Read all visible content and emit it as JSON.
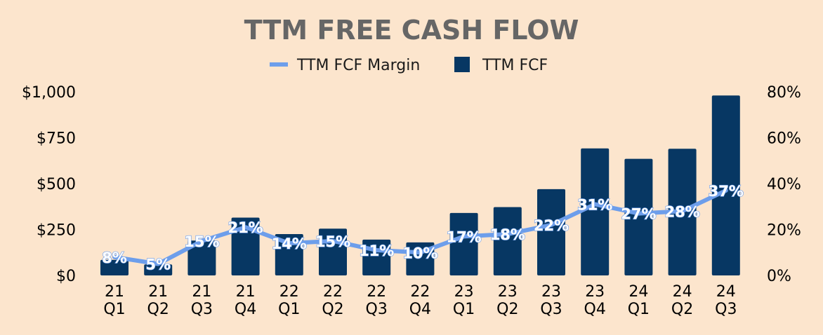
{
  "chart_data": {
    "type": "bar",
    "title": "TTM FREE CASH FLOW",
    "legend": {
      "placement": "top"
    },
    "categories": [
      [
        "21",
        "Q1"
      ],
      [
        "21",
        "Q2"
      ],
      [
        "21",
        "Q3"
      ],
      [
        "21",
        "Q4"
      ],
      [
        "22",
        "Q1"
      ],
      [
        "22",
        "Q2"
      ],
      [
        "22",
        "Q3"
      ],
      [
        "22",
        "Q4"
      ],
      [
        "23",
        "Q1"
      ],
      [
        "23",
        "Q2"
      ],
      [
        "23",
        "Q3"
      ],
      [
        "23",
        "Q4"
      ],
      [
        "24",
        "Q1"
      ],
      [
        "24",
        "Q2"
      ],
      [
        "24",
        "Q3"
      ]
    ],
    "series": [
      {
        "name": "TTM FCF Margin",
        "type": "line",
        "axis": "right",
        "color": "#6d9eeb",
        "values": [
          8,
          5,
          15,
          21,
          14,
          15,
          11,
          10,
          17,
          18,
          22,
          31,
          27,
          28,
          37
        ],
        "labels": [
          "8%",
          "5%",
          "15%",
          "21%",
          "14%",
          "15%",
          "11%",
          "10%",
          "17%",
          "18%",
          "22%",
          "31%",
          "27%",
          "28%",
          "37%"
        ]
      },
      {
        "name": "TTM FCF",
        "type": "bar",
        "axis": "left",
        "color": "#073763",
        "values": [
          85,
          60,
          190,
          315,
          225,
          255,
          195,
          180,
          340,
          372,
          470,
          692,
          635,
          690,
          980
        ]
      }
    ],
    "y_left": {
      "min": 0,
      "max": 1000,
      "ticks": [
        0,
        250,
        500,
        750,
        1000
      ],
      "tick_labels": [
        "$0",
        "$250",
        "$500",
        "$750",
        "$1,000"
      ]
    },
    "y_right": {
      "min": 0,
      "max": 80,
      "ticks": [
        0,
        20,
        40,
        60,
        80
      ],
      "tick_labels": [
        "0%",
        "20%",
        "40%",
        "60%",
        "80%"
      ]
    },
    "grid": false
  }
}
